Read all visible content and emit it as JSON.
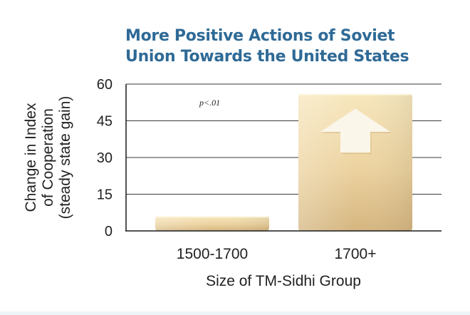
{
  "chart_data": {
    "type": "bar",
    "title": "More Positive Actions of Soviet Union Towards the United States",
    "title_lines": [
      "More Positive Actions of Soviet",
      "Union Towards the United States"
    ],
    "categories": [
      "1500-1700",
      "1700+"
    ],
    "values": [
      6,
      56
    ],
    "xlabel": "Size of TM-Sidhi Group",
    "ylabel_lines": [
      "Change in Index",
      "of Cooperation",
      "(steady state gain)"
    ],
    "ylim": [
      0,
      60
    ],
    "yticks": [
      0,
      15,
      30,
      45,
      60
    ],
    "ytick_labels": [
      "0",
      "15",
      "30",
      "45",
      "60"
    ],
    "grid": true,
    "annotations": [
      {
        "text": "p<.01",
        "position": "top-left"
      }
    ],
    "arrow_on_bar": "1700+"
  },
  "colors": {
    "title": "#2f6a96",
    "bar_light": "#f5e2b3",
    "bar_dark": "#d7b984",
    "grid": "#333333",
    "arrow": "#fbf6ea"
  }
}
